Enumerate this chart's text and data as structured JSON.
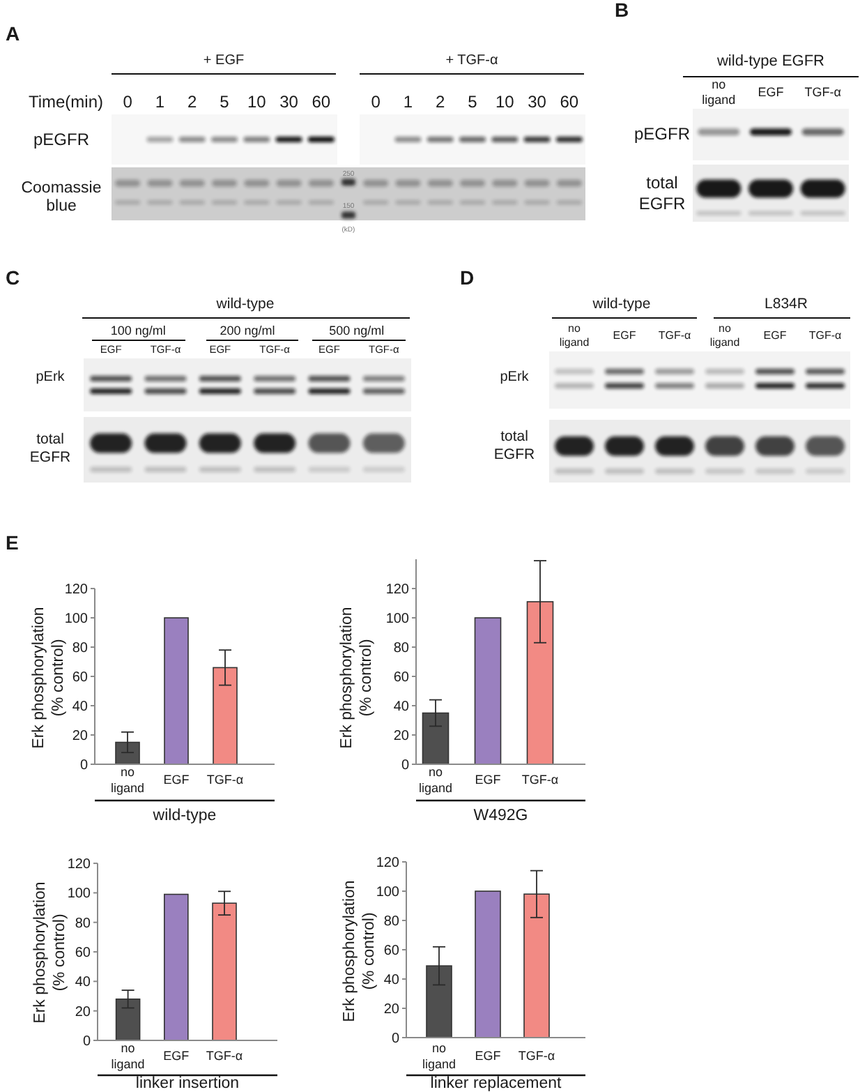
{
  "chart_data": [
    {
      "type": "other",
      "title": "A",
      "annotations": [
        "+ EGF",
        "+ TGF-α",
        "Time(min)",
        "0",
        "1",
        "2",
        "5",
        "10",
        "30",
        "60",
        "0",
        "1",
        "2",
        "5",
        "10",
        "30",
        "60",
        "pEGFR",
        "Coomassie\nblue",
        "250",
        "150",
        "(kD)"
      ]
    },
    {
      "type": "other",
      "title": "B",
      "annotations": [
        "wild-type EGFR",
        "no\nligand",
        "EGF",
        "TGF-α",
        "pEGFR",
        "total\nEGFR"
      ]
    },
    {
      "type": "other",
      "title": "C",
      "annotations": [
        "wild-type",
        "100 ng/ml",
        "200 ng/ml",
        "500 ng/ml",
        "EGF",
        "TGF-α",
        "EGF",
        "TGF-α",
        "EGF",
        "TGF-α",
        "pErk",
        "total\nEGFR"
      ]
    },
    {
      "type": "other",
      "title": "D",
      "annotations": [
        "wild-type",
        "L834R",
        "no\nligand",
        "EGF",
        "TGF-α",
        "no\nligand",
        "EGF",
        "TGF-α",
        "pErk",
        "total\nEGFR"
      ]
    },
    {
      "type": "bar",
      "title": "E",
      "categories": [
        "no\nligand",
        "EGF",
        "TGF-α"
      ],
      "values": [
        15,
        100,
        66
      ],
      "errors": [
        7,
        null,
        12
      ],
      "colors": [
        "#4f4f4f",
        "#9a80bf",
        "#f28a84"
      ],
      "ylim": [
        0,
        120
      ],
      "yticks": [
        0,
        20,
        40,
        60,
        80,
        100,
        120
      ],
      "ylabel": "Erk phosphorylation\n(% control)",
      "xlabel": "wild-type"
    },
    {
      "type": "bar",
      "categories": [
        "no\nligand",
        "EGF",
        "TGF-α"
      ],
      "values": [
        35,
        100,
        111
      ],
      "errors": [
        9,
        null,
        28
      ],
      "colors": [
        "#4f4f4f",
        "#9a80bf",
        "#f28a84"
      ],
      "ylim": [
        0,
        140
      ],
      "yticks": [
        0,
        20,
        40,
        60,
        80,
        100,
        120
      ],
      "ylabel": "Erk phosphorylation\n(% control)",
      "xlabel": "W492G"
    },
    {
      "type": "bar",
      "categories": [
        "no\nligand",
        "EGF",
        "TGF-α"
      ],
      "values": [
        28,
        99,
        93
      ],
      "errors": [
        6,
        null,
        8
      ],
      "colors": [
        "#4f4f4f",
        "#9a80bf",
        "#f28a84"
      ],
      "ylim": [
        0,
        120
      ],
      "yticks": [
        0,
        20,
        40,
        60,
        80,
        100,
        120
      ],
      "ylabel": "Erk phosphorylation\n(% control)",
      "xlabel": "linker insertion"
    },
    {
      "type": "bar",
      "categories": [
        "no\nligand",
        "EGF",
        "TGF-α"
      ],
      "values": [
        49,
        100,
        98
      ],
      "errors": [
        13,
        null,
        16
      ],
      "colors": [
        "#4f4f4f",
        "#9a80bf",
        "#f28a84"
      ],
      "ylim": [
        0,
        120
      ],
      "yticks": [
        0,
        20,
        40,
        60,
        80,
        100,
        120
      ],
      "ylabel": "Erk phosphorylation\n(% control)",
      "xlabel": "linker replacement"
    }
  ]
}
